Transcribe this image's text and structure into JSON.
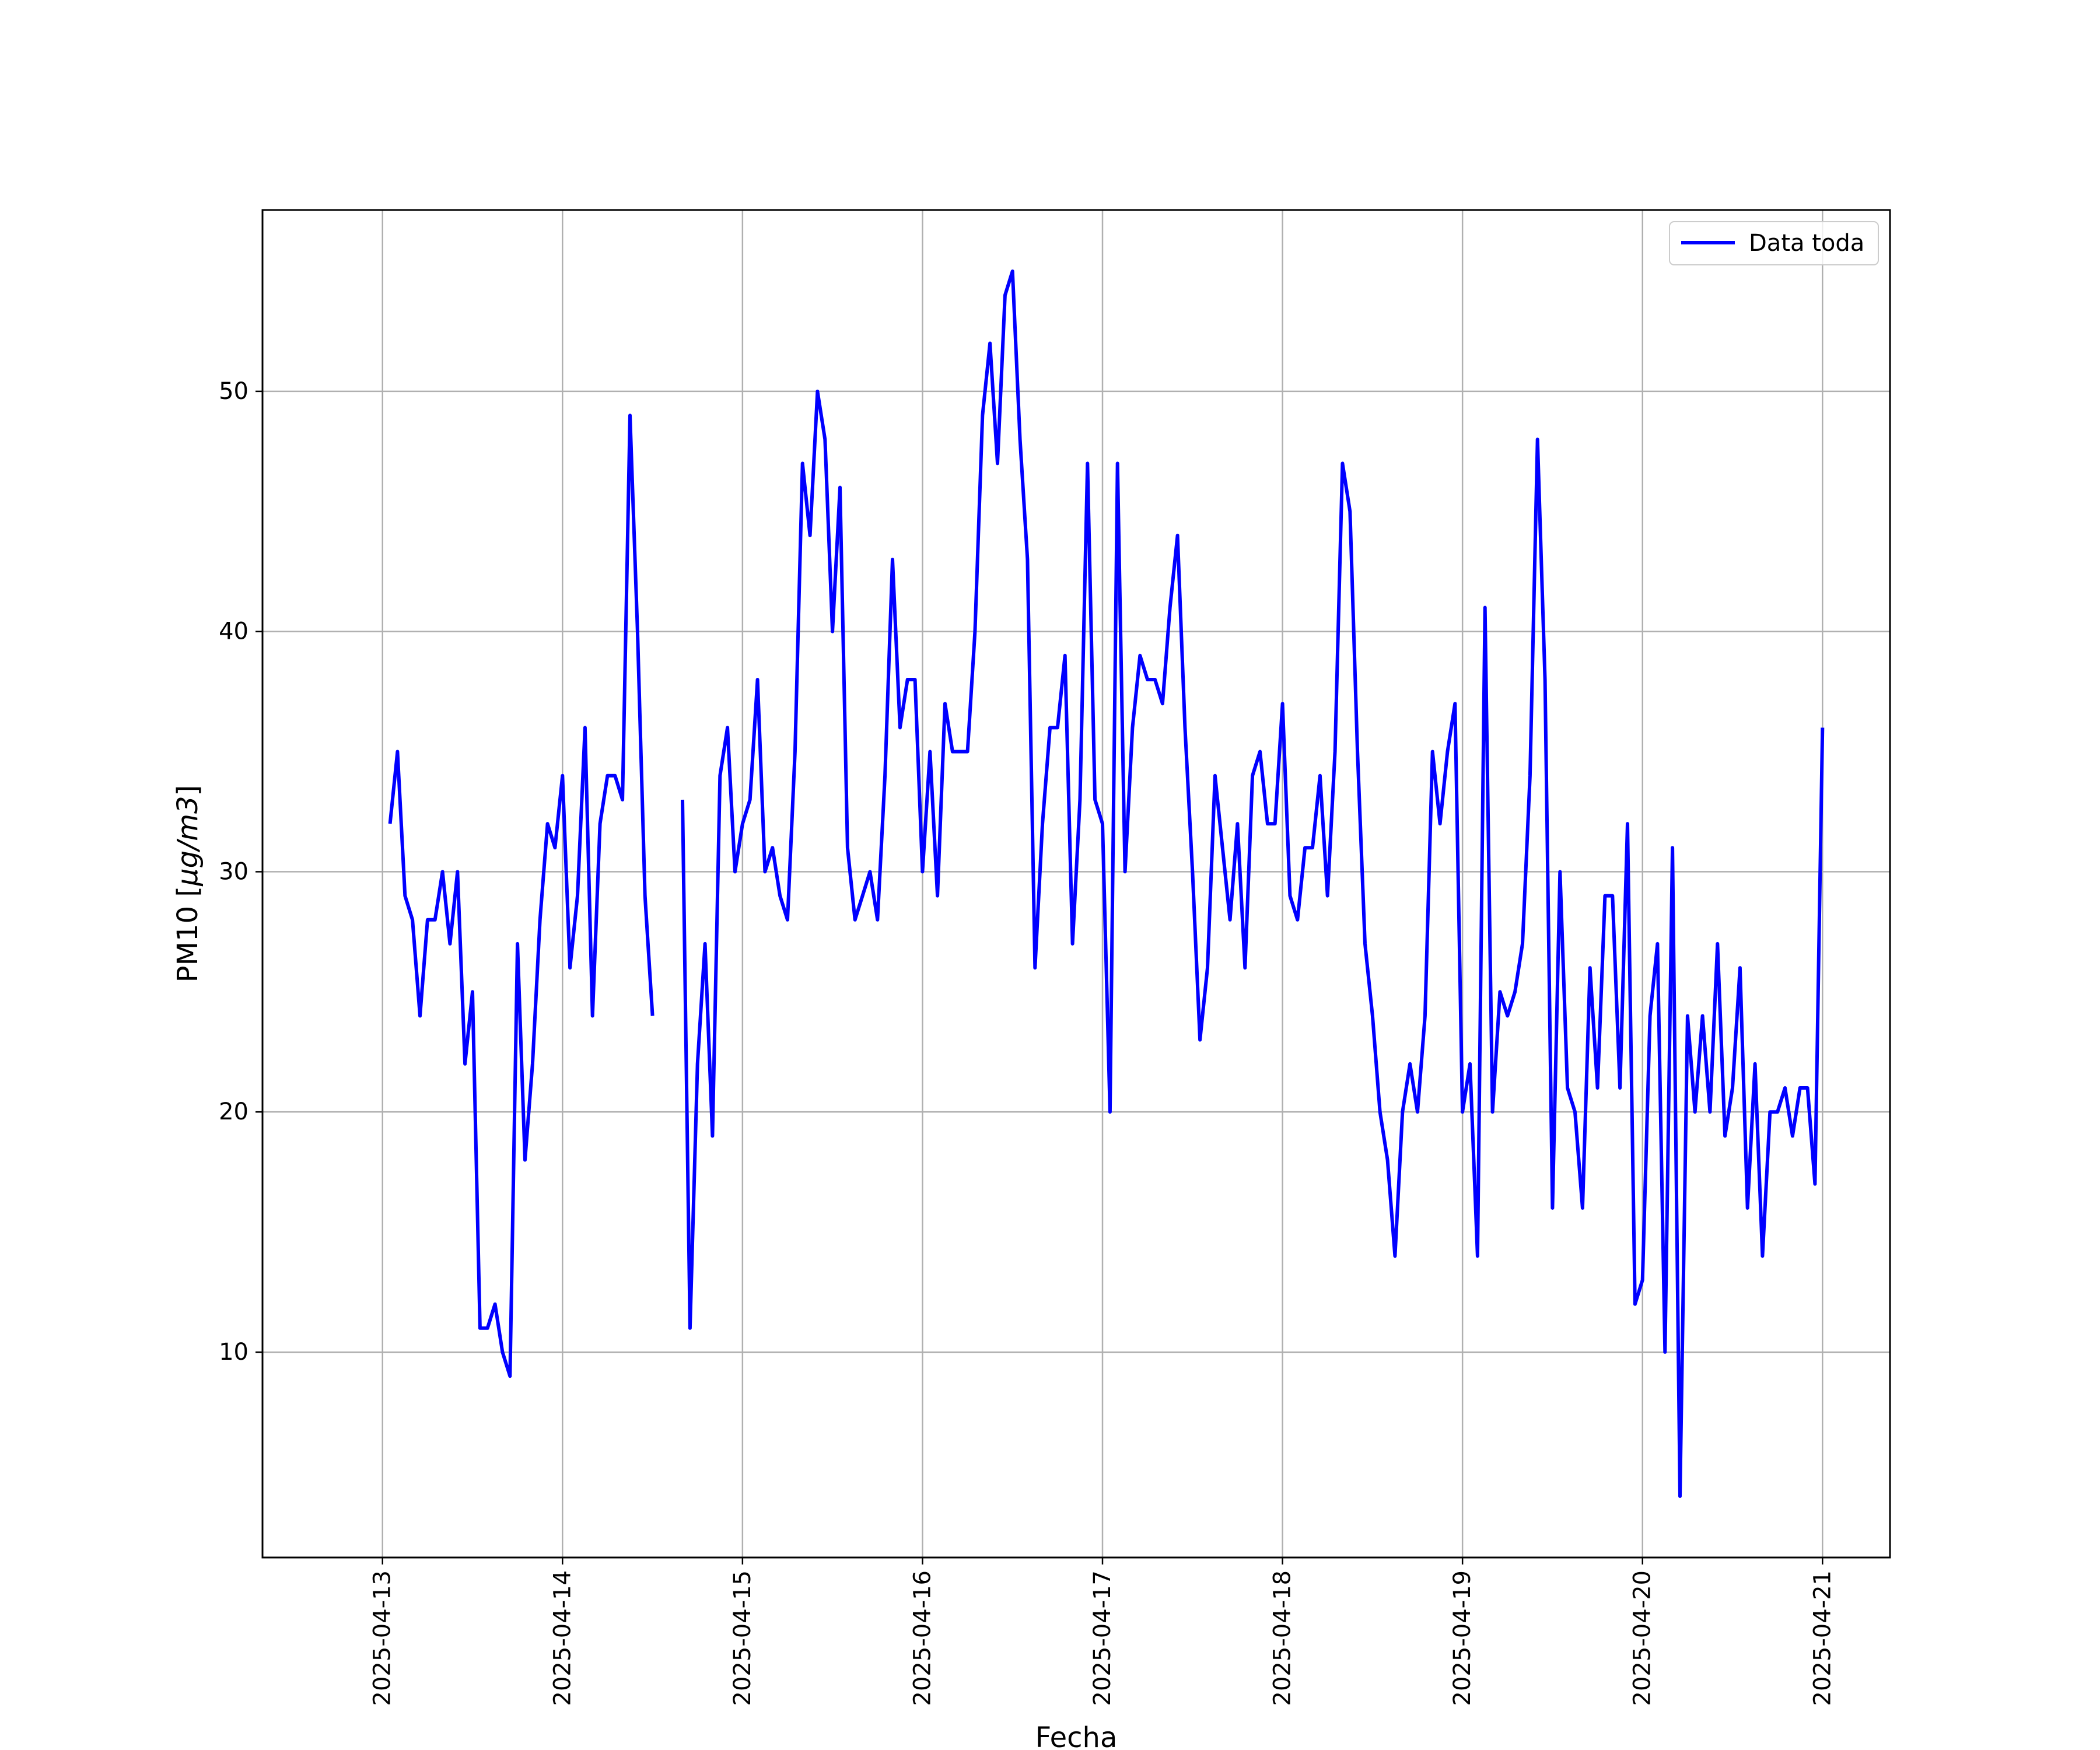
{
  "chart_data": {
    "type": "line",
    "title": "",
    "xlabel": "Fecha",
    "ylabel_text": "PM10 [",
    "ylabel_math": "µg/m3",
    "ylabel_close": "]",
    "x_tick_labels": [
      "2025-04-13",
      "2025-04-14",
      "2025-04-15",
      "2025-04-16",
      "2025-04-17",
      "2025-04-18",
      "2025-04-19",
      "2025-04-20",
      "2025-04-21"
    ],
    "y_ticks": [
      10,
      20,
      30,
      40,
      50
    ],
    "xlim": [
      "2025-04-12T08:00",
      "2025-04-21T09:00"
    ],
    "ylim": [
      1.45,
      57.55
    ],
    "grid": true,
    "legend_position": "top-right",
    "x_label_rotation": "vertical",
    "series": [
      {
        "name": "Data toda",
        "color": "#0000ff",
        "x": [
          "2025-04-13T01:00",
          "2025-04-13T02:00",
          "2025-04-13T03:00",
          "2025-04-13T04:00",
          "2025-04-13T05:00",
          "2025-04-13T06:00",
          "2025-04-13T07:00",
          "2025-04-13T08:00",
          "2025-04-13T09:00",
          "2025-04-13T10:00",
          "2025-04-13T11:00",
          "2025-04-13T12:00",
          "2025-04-13T13:00",
          "2025-04-13T14:00",
          "2025-04-13T15:00",
          "2025-04-13T16:00",
          "2025-04-13T17:00",
          "2025-04-13T18:00",
          "2025-04-13T19:00",
          "2025-04-13T20:00",
          "2025-04-13T21:00",
          "2025-04-13T22:00",
          "2025-04-13T23:00",
          "2025-04-14T00:00",
          "2025-04-14T01:00",
          "2025-04-14T02:00",
          "2025-04-14T03:00",
          "2025-04-14T04:00",
          "2025-04-14T05:00",
          "2025-04-14T06:00",
          "2025-04-14T07:00",
          "2025-04-14T08:00",
          "2025-04-14T09:00",
          "2025-04-14T10:00",
          "2025-04-14T11:00",
          "2025-04-14T12:00",
          "2025-04-14T16:00",
          "2025-04-14T17:00",
          "2025-04-14T18:00",
          "2025-04-14T19:00",
          "2025-04-14T20:00",
          "2025-04-14T21:00",
          "2025-04-14T22:00",
          "2025-04-14T23:00",
          "2025-04-15T00:00",
          "2025-04-15T01:00",
          "2025-04-15T02:00",
          "2025-04-15T03:00",
          "2025-04-15T04:00",
          "2025-04-15T05:00",
          "2025-04-15T06:00",
          "2025-04-15T07:00",
          "2025-04-15T08:00",
          "2025-04-15T09:00",
          "2025-04-15T10:00",
          "2025-04-15T11:00",
          "2025-04-15T12:00",
          "2025-04-15T13:00",
          "2025-04-15T14:00",
          "2025-04-15T15:00",
          "2025-04-15T16:00",
          "2025-04-15T17:00",
          "2025-04-15T18:00",
          "2025-04-15T19:00",
          "2025-04-15T20:00",
          "2025-04-15T21:00",
          "2025-04-15T22:00",
          "2025-04-15T23:00",
          "2025-04-16T00:00",
          "2025-04-16T01:00",
          "2025-04-16T02:00",
          "2025-04-16T03:00",
          "2025-04-16T04:00",
          "2025-04-16T05:00",
          "2025-04-16T06:00",
          "2025-04-16T07:00",
          "2025-04-16T08:00",
          "2025-04-16T09:00",
          "2025-04-16T10:00",
          "2025-04-16T11:00",
          "2025-04-16T12:00",
          "2025-04-16T13:00",
          "2025-04-16T14:00",
          "2025-04-16T15:00",
          "2025-04-16T16:00",
          "2025-04-16T17:00",
          "2025-04-16T18:00",
          "2025-04-16T19:00",
          "2025-04-16T20:00",
          "2025-04-16T21:00",
          "2025-04-16T22:00",
          "2025-04-16T23:00",
          "2025-04-17T00:00",
          "2025-04-17T01:00",
          "2025-04-17T02:00",
          "2025-04-17T03:00",
          "2025-04-17T04:00",
          "2025-04-17T05:00",
          "2025-04-17T06:00",
          "2025-04-17T07:00",
          "2025-04-17T08:00",
          "2025-04-17T09:00",
          "2025-04-17T10:00",
          "2025-04-17T11:00",
          "2025-04-17T12:00",
          "2025-04-17T13:00",
          "2025-04-17T14:00",
          "2025-04-17T15:00",
          "2025-04-17T16:00",
          "2025-04-17T17:00",
          "2025-04-17T18:00",
          "2025-04-17T19:00",
          "2025-04-17T20:00",
          "2025-04-17T21:00",
          "2025-04-17T22:00",
          "2025-04-17T23:00",
          "2025-04-18T00:00",
          "2025-04-18T01:00",
          "2025-04-18T02:00",
          "2025-04-18T03:00",
          "2025-04-18T04:00",
          "2025-04-18T05:00",
          "2025-04-18T06:00",
          "2025-04-18T07:00",
          "2025-04-18T08:00",
          "2025-04-18T09:00",
          "2025-04-18T10:00",
          "2025-04-18T11:00",
          "2025-04-18T12:00",
          "2025-04-18T13:00",
          "2025-04-18T14:00",
          "2025-04-18T15:00",
          "2025-04-18T16:00",
          "2025-04-18T17:00",
          "2025-04-18T18:00",
          "2025-04-18T19:00",
          "2025-04-18T20:00",
          "2025-04-18T21:00",
          "2025-04-18T22:00",
          "2025-04-18T23:00",
          "2025-04-19T00:00",
          "2025-04-19T01:00",
          "2025-04-19T02:00",
          "2025-04-19T03:00",
          "2025-04-19T04:00",
          "2025-04-19T05:00",
          "2025-04-19T06:00",
          "2025-04-19T07:00",
          "2025-04-19T08:00",
          "2025-04-19T09:00",
          "2025-04-19T10:00",
          "2025-04-19T11:00",
          "2025-04-19T12:00",
          "2025-04-19T13:00",
          "2025-04-19T14:00",
          "2025-04-19T15:00",
          "2025-04-19T16:00",
          "2025-04-19T17:00",
          "2025-04-19T18:00",
          "2025-04-19T19:00",
          "2025-04-19T20:00",
          "2025-04-19T21:00",
          "2025-04-19T22:00",
          "2025-04-19T23:00",
          "2025-04-20T00:00",
          "2025-04-20T01:00",
          "2025-04-20T02:00",
          "2025-04-20T03:00",
          "2025-04-20T04:00",
          "2025-04-20T05:00",
          "2025-04-20T06:00",
          "2025-04-20T07:00",
          "2025-04-20T08:00",
          "2025-04-20T09:00",
          "2025-04-20T10:00",
          "2025-04-20T11:00",
          "2025-04-20T12:00",
          "2025-04-20T13:00",
          "2025-04-20T14:00",
          "2025-04-20T15:00",
          "2025-04-20T16:00",
          "2025-04-20T17:00",
          "2025-04-20T18:00",
          "2025-04-20T19:00",
          "2025-04-20T20:00",
          "2025-04-20T21:00",
          "2025-04-20T22:00",
          "2025-04-20T23:00",
          "2025-04-21T00:00"
        ],
        "y": [
          32,
          35,
          29,
          28,
          24,
          28,
          28,
          30,
          27,
          30,
          22,
          25,
          11,
          11,
          12,
          10,
          9,
          27,
          18,
          22,
          28,
          32,
          31,
          34,
          26,
          29,
          36,
          24,
          32,
          34,
          34,
          33,
          49,
          40,
          29,
          24,
          33,
          11,
          22,
          27,
          19,
          34,
          36,
          30,
          32,
          33,
          38,
          30,
          31,
          29,
          28,
          35,
          47,
          44,
          50,
          48,
          40,
          46,
          31,
          28,
          29,
          30,
          28,
          34,
          43,
          36,
          38,
          38,
          30,
          35,
          29,
          37,
          35,
          35,
          35,
          40,
          49,
          52,
          47,
          54,
          55,
          48,
          43,
          26,
          32,
          36,
          36,
          39,
          27,
          33,
          47,
          33,
          32,
          20,
          47,
          30,
          36,
          39,
          38,
          38,
          37,
          41,
          44,
          36,
          30,
          23,
          26,
          34,
          31,
          28,
          32,
          26,
          34,
          35,
          32,
          32,
          37,
          29,
          28,
          31,
          31,
          34,
          29,
          35,
          47,
          45,
          35,
          27,
          24,
          20,
          18,
          14,
          20,
          22,
          20,
          24,
          35,
          32,
          35,
          37,
          20,
          22,
          14,
          41,
          20,
          25,
          24,
          25,
          27,
          34,
          48,
          38,
          16,
          30,
          21,
          20,
          16,
          26,
          21,
          29,
          29,
          21,
          32,
          12,
          13,
          24,
          27,
          10,
          31,
          4,
          24,
          20,
          24,
          20,
          27,
          19,
          21,
          26,
          16,
          22,
          14,
          20,
          20,
          21,
          19,
          21,
          21,
          17,
          36
        ]
      }
    ]
  }
}
